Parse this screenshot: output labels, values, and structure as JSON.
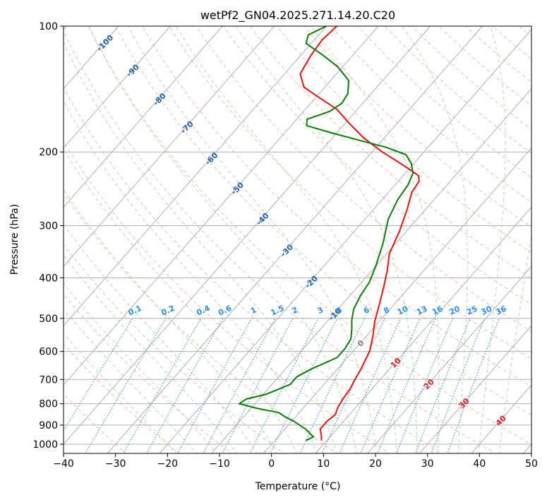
{
  "chart_data": {
    "type": "line",
    "chart_kind": "skew-T log-P sounding",
    "title": "wetPf2_GN04.2025.271.14.20.C20",
    "xlabel": "Temperature (°C)",
    "ylabel": "Pressure (hPa)",
    "xlim": [
      -40,
      50
    ],
    "ylim_hpa": [
      1050,
      100
    ],
    "x_ticks": [
      -40,
      -30,
      -20,
      -10,
      0,
      10,
      20,
      30,
      40,
      50
    ],
    "x_tick_labels": [
      "−40",
      "−30",
      "−20",
      "−10",
      "0",
      "10",
      "20",
      "30",
      "40",
      "50"
    ],
    "y_ticks": [
      100,
      200,
      300,
      400,
      500,
      600,
      700,
      800,
      900,
      1000
    ],
    "y_tick_labels": [
      "100",
      "200",
      "300",
      "400",
      "500",
      "600",
      "700",
      "800",
      "900",
      "1000"
    ],
    "grid": true,
    "colors": {
      "temperature": "#e8120c",
      "dewpoint": "#0a7d0a",
      "isotherm": "#b0b0b0",
      "dry_adiabat": "#f5a58a",
      "moist_adiabat": "#9fd49f",
      "mixing_ratio": "#3a8fe0",
      "isotherm_label": "#2563a8",
      "moist_label": "#d62020",
      "mixing_label": "#2d8fe6"
    },
    "series": [
      {
        "name": "Temperature",
        "points": [
          [
            9.0,
            980
          ],
          [
            8.0,
            950
          ],
          [
            6.8,
            920
          ],
          [
            6.8,
            880
          ],
          [
            7.3,
            850
          ],
          [
            6.6,
            820
          ],
          [
            6.1,
            780
          ],
          [
            5.8,
            740
          ],
          [
            5.1,
            700
          ],
          [
            4.5,
            660
          ],
          [
            3.2,
            600
          ],
          [
            1.2,
            550
          ],
          [
            -0.8,
            510
          ],
          [
            -3.0,
            460
          ],
          [
            -5.0,
            420
          ],
          [
            -7.0,
            385
          ],
          [
            -9.5,
            350
          ],
          [
            -11.3,
            310
          ],
          [
            -13.5,
            275
          ],
          [
            -15.5,
            250
          ],
          [
            -16.0,
            235
          ],
          [
            -17.0,
            228
          ],
          [
            -19.5,
            221
          ],
          [
            -23.0,
            212
          ],
          [
            -28.0,
            200
          ],
          [
            -34.0,
            185
          ],
          [
            -39.5,
            170
          ],
          [
            -44.0,
            158
          ],
          [
            -50.0,
            147
          ],
          [
            -54.0,
            140
          ],
          [
            -57.0,
            130
          ],
          [
            -58.0,
            118
          ],
          [
            -58.5,
            108
          ],
          [
            -58.0,
            100
          ]
        ]
      },
      {
        "name": "Dewpoint",
        "points": [
          [
            6.0,
            980
          ],
          [
            6.8,
            960
          ],
          [
            4.0,
            920
          ],
          [
            0.3,
            880
          ],
          [
            -2.0,
            860
          ],
          [
            -4.0,
            840
          ],
          [
            -9.0,
            820
          ],
          [
            -13.0,
            800
          ],
          [
            -12.5,
            780
          ],
          [
            -9.5,
            760
          ],
          [
            -6.5,
            720
          ],
          [
            -6.5,
            690
          ],
          [
            -5.0,
            660
          ],
          [
            -3.5,
            640
          ],
          [
            -2.0,
            620
          ],
          [
            -2.0,
            590
          ],
          [
            -2.5,
            560
          ],
          [
            -4.0,
            530
          ],
          [
            -5.5,
            505
          ],
          [
            -7.0,
            475
          ],
          [
            -8.0,
            440
          ],
          [
            -8.5,
            410
          ],
          [
            -10.0,
            375
          ],
          [
            -12.5,
            330
          ],
          [
            -15.5,
            290
          ],
          [
            -17.0,
            260
          ],
          [
            -17.5,
            240
          ],
          [
            -18.5,
            225
          ],
          [
            -20.5,
            213
          ],
          [
            -23.0,
            203
          ],
          [
            -28.0,
            195
          ],
          [
            -34.0,
            188
          ],
          [
            -41.0,
            180
          ],
          [
            -47.0,
            173
          ],
          [
            -48.0,
            167
          ],
          [
            -45.0,
            160
          ],
          [
            -44.0,
            153
          ],
          [
            -44.5,
            145
          ],
          [
            -46.5,
            135
          ],
          [
            -51.0,
            125
          ],
          [
            -56.0,
            117
          ],
          [
            -61.0,
            110
          ],
          [
            -62.0,
            105
          ],
          [
            -60.0,
            100
          ]
        ]
      }
    ],
    "isotherm_labels": [
      "-100",
      "-90",
      "-80",
      "-70",
      "-60",
      "-50",
      "-40",
      "-30",
      "-20",
      "-10"
    ],
    "zero_label": "0",
    "moist_labels": [
      "10",
      "20",
      "30",
      "40"
    ],
    "mixing_ratio_labels": [
      "0.1",
      "0.2",
      "0.4",
      "0.6",
      "1",
      "1.5",
      "2",
      "3",
      "4",
      "6",
      "8",
      "10",
      "13",
      "16",
      "20",
      "25",
      "30",
      "36"
    ]
  }
}
